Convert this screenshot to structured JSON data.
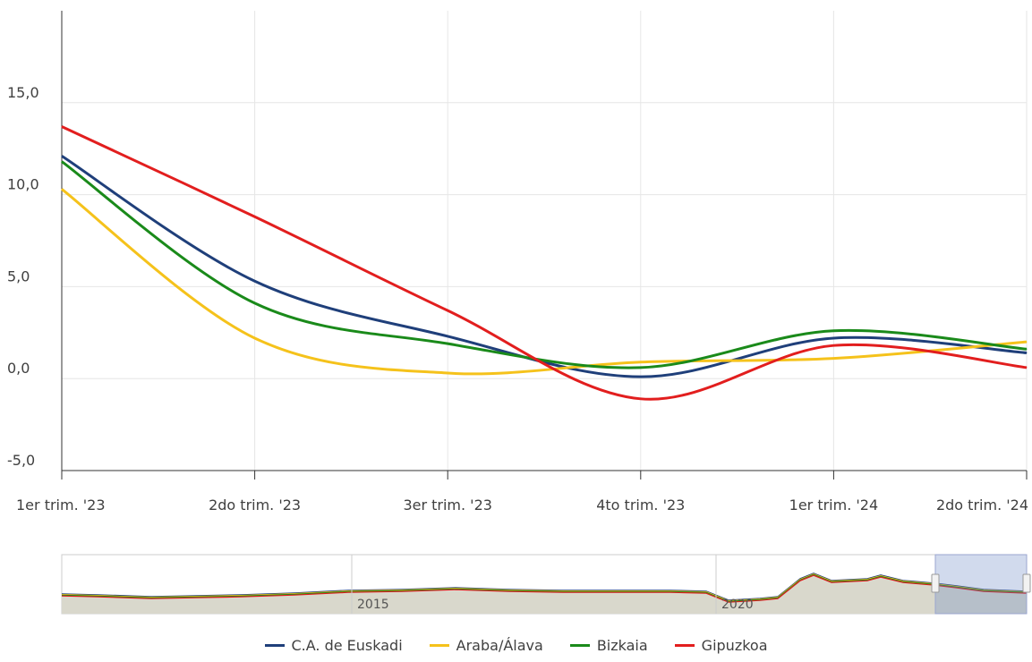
{
  "chart_data": {
    "type": "line",
    "categories": [
      "1er trim. '23",
      "2do trim. '23",
      "3er trim. '23",
      "4to trim. '23",
      "1er trim. '24",
      "2do trim. '24"
    ],
    "y_ticks": [
      "-5,0",
      "0,0",
      "5,0",
      "10,0",
      "15,0"
    ],
    "ylim": [
      -5,
      20
    ],
    "grid": true,
    "legend_placement": "bottom",
    "series": [
      {
        "name": "C.A. de Euskadi",
        "color": "#1f3f7a",
        "values": [
          12.1,
          5.3,
          2.3,
          0.1,
          2.2,
          1.4
        ]
      },
      {
        "name": "Araba/Álava",
        "color": "#f5c21b",
        "values": [
          10.3,
          2.2,
          0.3,
          0.9,
          1.1,
          2.0
        ]
      },
      {
        "name": "Bizkaia",
        "color": "#1a8a1a",
        "values": [
          11.8,
          4.1,
          1.9,
          0.6,
          2.6,
          1.6
        ]
      },
      {
        "name": "Gipuzkoa",
        "color": "#e21e1e",
        "values": [
          13.7,
          8.8,
          3.7,
          -1.1,
          1.8,
          0.6
        ]
      }
    ],
    "navigator": {
      "labels": [
        "2015",
        "2020"
      ]
    }
  }
}
